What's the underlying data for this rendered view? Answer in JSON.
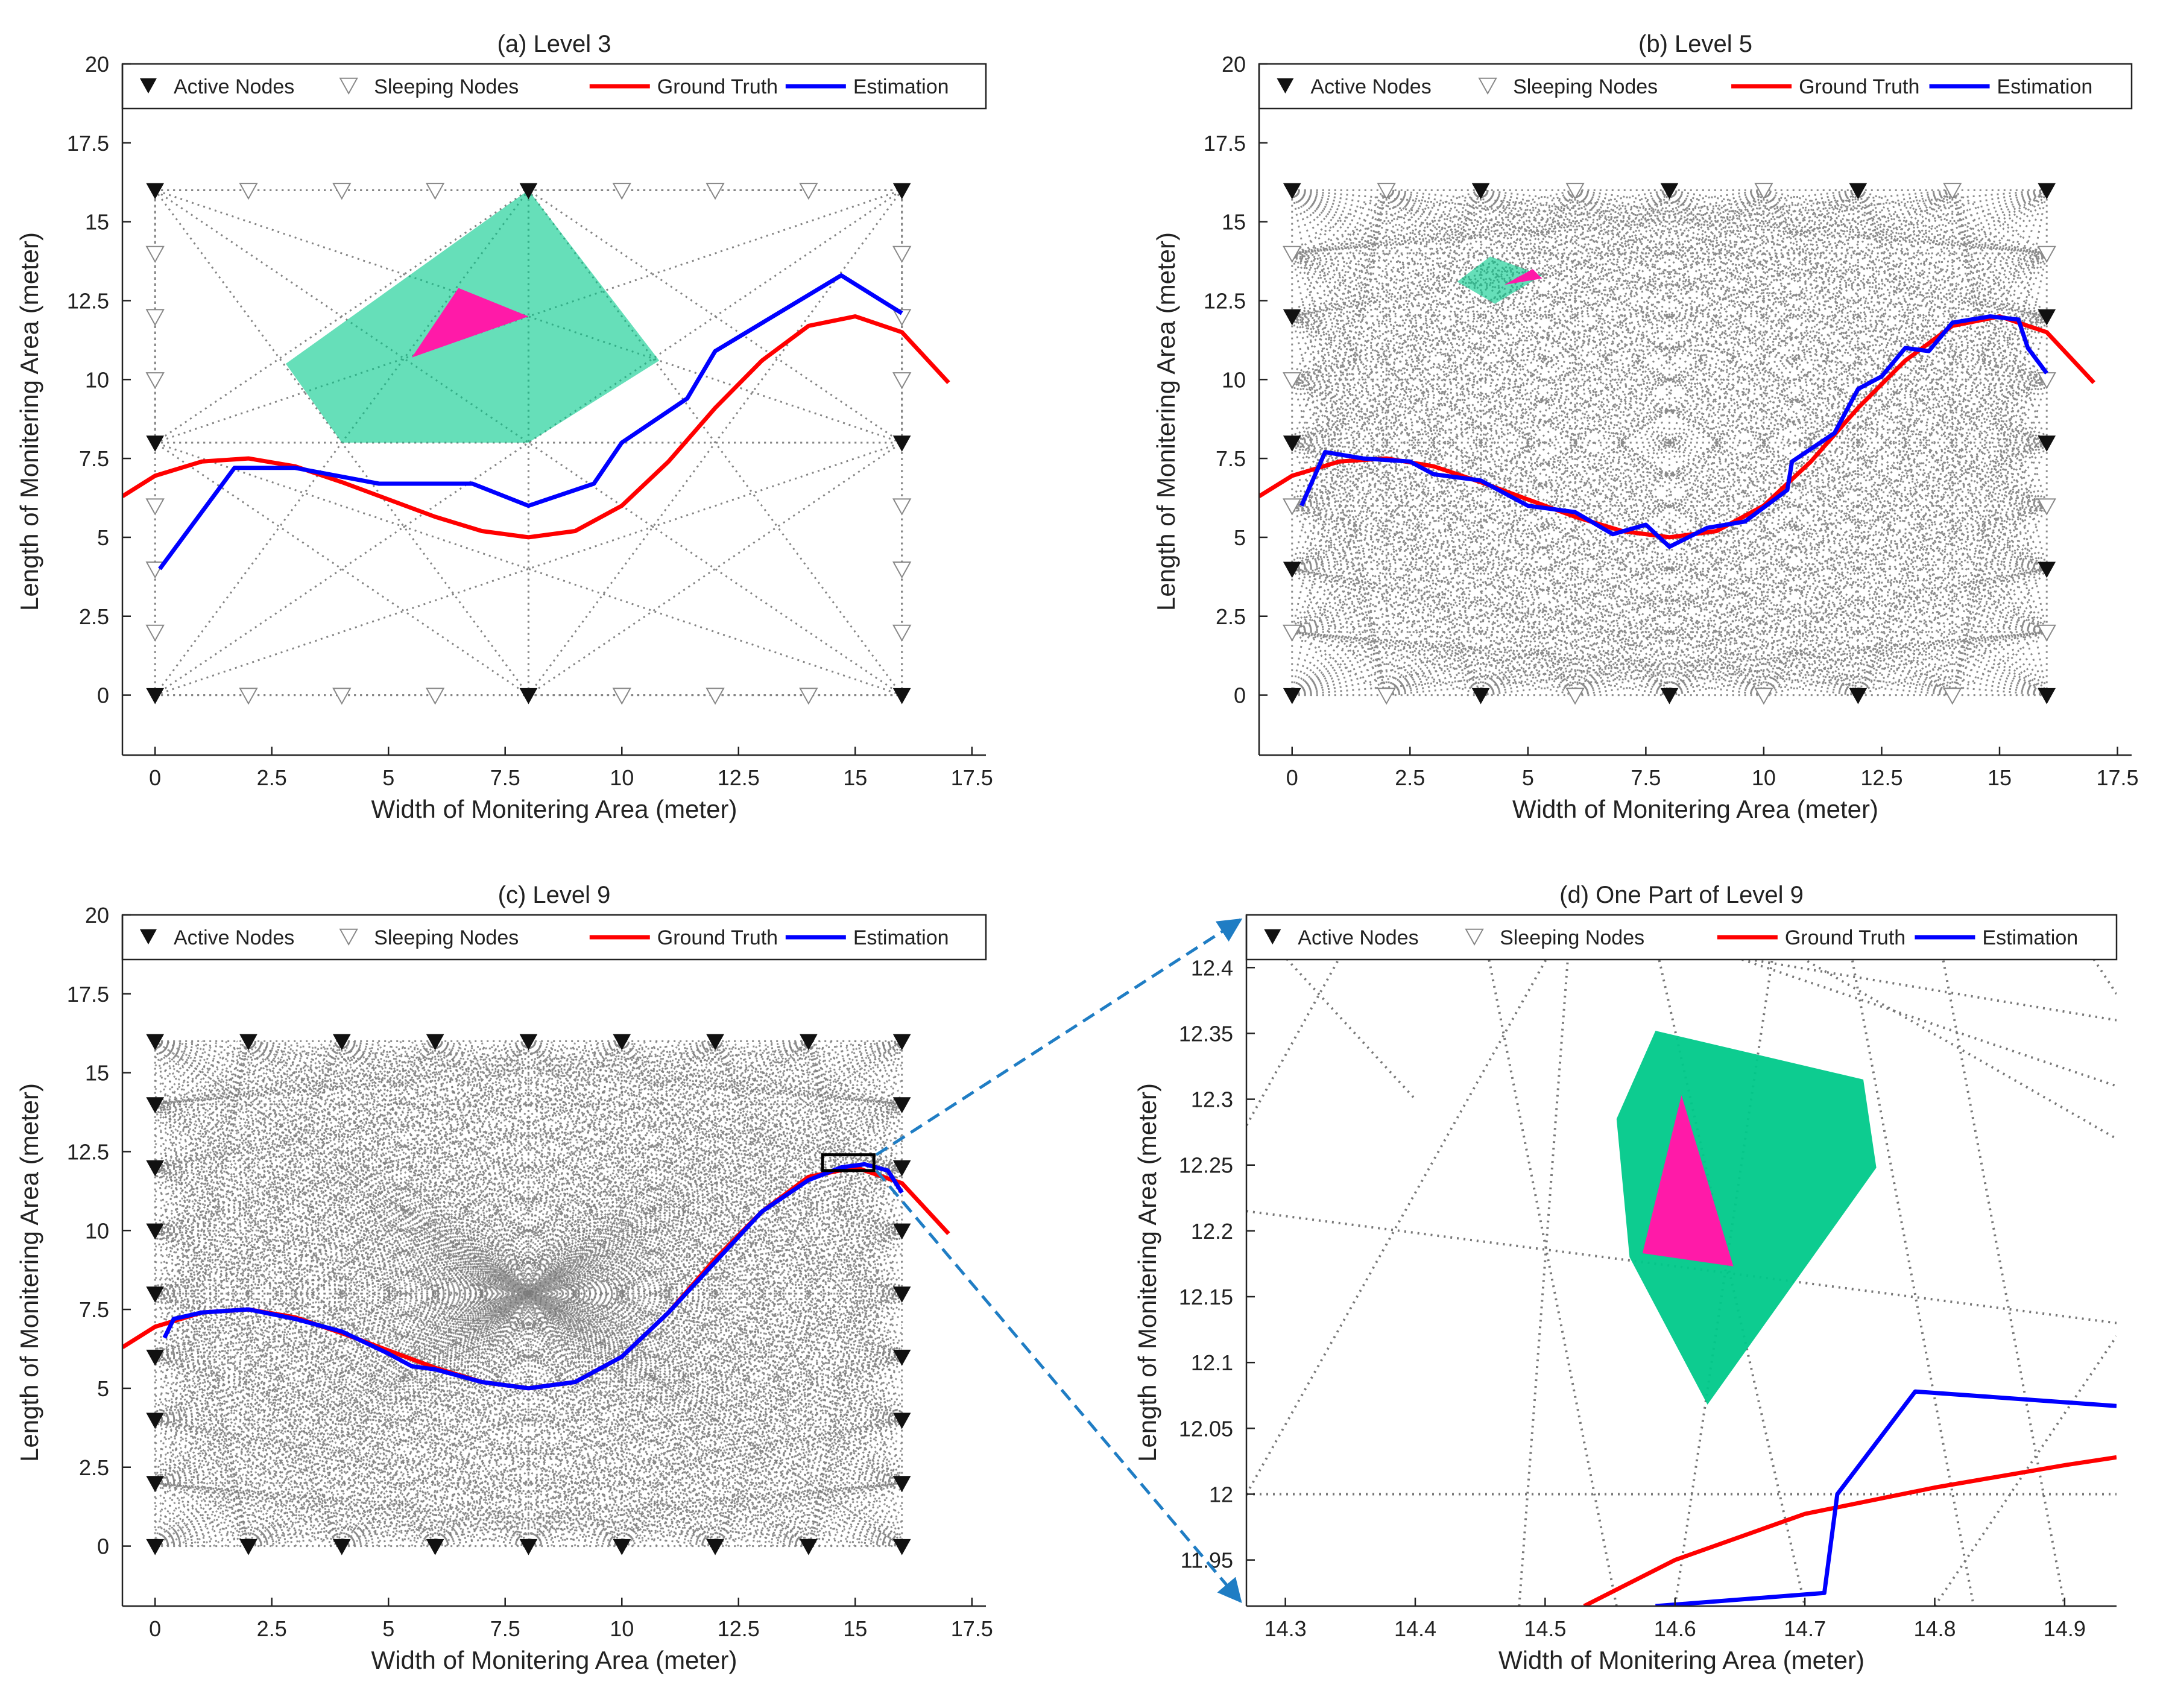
{
  "legend": {
    "active_nodes": "Active Nodes",
    "sleeping_nodes": "Sleeping Nodes",
    "ground_truth": "Ground Truth",
    "estimation": "Estimation"
  },
  "colors": {
    "ground_truth": "#ff0000",
    "estimation": "#0000ff",
    "region": "#00c98a",
    "target": "#ff1aa8",
    "grid_lines": "#777777",
    "zoom_arrow": "#1f7dc4"
  },
  "chart_data": [
    {
      "type": "line",
      "title": "(a) Level 3",
      "xlabel": "Width of Monitering Area (meter)",
      "ylabel": "Length of Monitering Area (meter)",
      "xlim": [
        -0.7,
        17.8
      ],
      "ylim": [
        -1.9,
        20
      ],
      "xticks": [
        "0",
        "2.5",
        "5",
        "7.5",
        "10",
        "12.5",
        "15",
        "17.5"
      ],
      "yticks": [
        "0",
        "2.5",
        "5",
        "7.5",
        "10",
        "12.5",
        "15",
        "17.5",
        "20"
      ],
      "active_nodes": [
        [
          0,
          0
        ],
        [
          8,
          0
        ],
        [
          16,
          0
        ],
        [
          0,
          8
        ],
        [
          16,
          8
        ],
        [
          0,
          16
        ],
        [
          8,
          16
        ],
        [
          16,
          16
        ]
      ],
      "sleeping_nodes": [
        [
          2,
          0
        ],
        [
          4,
          0
        ],
        [
          6,
          0
        ],
        [
          10,
          0
        ],
        [
          12,
          0
        ],
        [
          14,
          0
        ],
        [
          2,
          16
        ],
        [
          4,
          16
        ],
        [
          6,
          16
        ],
        [
          10,
          16
        ],
        [
          12,
          16
        ],
        [
          14,
          16
        ],
        [
          0,
          2
        ],
        [
          0,
          4
        ],
        [
          0,
          6
        ],
        [
          0,
          10
        ],
        [
          0,
          12
        ],
        [
          0,
          14
        ],
        [
          16,
          2
        ],
        [
          16,
          4
        ],
        [
          16,
          6
        ],
        [
          16,
          10
        ],
        [
          16,
          12
        ],
        [
          16,
          14
        ]
      ],
      "ground_truth": [
        [
          -0.7,
          6.3
        ],
        [
          0,
          6.95
        ],
        [
          1,
          7.4
        ],
        [
          2,
          7.5
        ],
        [
          3,
          7.25
        ],
        [
          4,
          6.75
        ],
        [
          5,
          6.2
        ],
        [
          6,
          5.65
        ],
        [
          7,
          5.2
        ],
        [
          8,
          5.0
        ],
        [
          9,
          5.2
        ],
        [
          10,
          6.0
        ],
        [
          11,
          7.4
        ],
        [
          12,
          9.1
        ],
        [
          13,
          10.6
        ],
        [
          14,
          11.7
        ],
        [
          15,
          12.0
        ],
        [
          16,
          11.5
        ],
        [
          17,
          9.9
        ]
      ],
      "estimation": [
        [
          0.1,
          4.0
        ],
        [
          1.7,
          7.2
        ],
        [
          3.0,
          7.2
        ],
        [
          4.8,
          6.7
        ],
        [
          6.8,
          6.7
        ],
        [
          8.0,
          6.0
        ],
        [
          9.4,
          6.7
        ],
        [
          10.0,
          8.0
        ],
        [
          11.4,
          9.4
        ],
        [
          12.0,
          10.9
        ],
        [
          14.7,
          13.3
        ],
        [
          16.0,
          12.1
        ]
      ],
      "region": [
        [
          4.0,
          8.0
        ],
        [
          2.8,
          10.5
        ],
        [
          8.0,
          16.0
        ],
        [
          10.8,
          10.6
        ],
        [
          8.0,
          8.0
        ]
      ],
      "target": [
        [
          5.5,
          10.7
        ],
        [
          6.5,
          12.9
        ],
        [
          8.0,
          12.0
        ]
      ]
    },
    {
      "type": "line",
      "title": "(b) Level 5",
      "xlabel": "Width of Monitering Area (meter)",
      "ylabel": "Length of Monitering Area (meter)",
      "xlim": [
        -0.7,
        17.8
      ],
      "ylim": [
        -1.9,
        20
      ],
      "xticks": [
        "0",
        "2.5",
        "5",
        "7.5",
        "10",
        "12.5",
        "15",
        "17.5"
      ],
      "yticks": [
        "0",
        "2.5",
        "5",
        "7.5",
        "10",
        "12.5",
        "15",
        "17.5",
        "20"
      ],
      "ground_truth": [
        [
          -0.7,
          6.3
        ],
        [
          0,
          6.95
        ],
        [
          1,
          7.4
        ],
        [
          2,
          7.5
        ],
        [
          3,
          7.25
        ],
        [
          4,
          6.75
        ],
        [
          5,
          6.2
        ],
        [
          6,
          5.65
        ],
        [
          7,
          5.2
        ],
        [
          8,
          5.0
        ],
        [
          9,
          5.2
        ],
        [
          10,
          6.0
        ],
        [
          11,
          7.4
        ],
        [
          12,
          9.1
        ],
        [
          13,
          10.6
        ],
        [
          14,
          11.7
        ],
        [
          15,
          12.0
        ],
        [
          16,
          11.5
        ],
        [
          17,
          9.9
        ]
      ],
      "estimation": [
        [
          0.2,
          6.0
        ],
        [
          0.7,
          7.7
        ],
        [
          1.5,
          7.5
        ],
        [
          2.5,
          7.4
        ],
        [
          3.0,
          7.0
        ],
        [
          4.0,
          6.8
        ],
        [
          5.0,
          6.0
        ],
        [
          6.0,
          5.8
        ],
        [
          6.8,
          5.1
        ],
        [
          7.5,
          5.4
        ],
        [
          8.0,
          4.7
        ],
        [
          8.8,
          5.3
        ],
        [
          9.6,
          5.5
        ],
        [
          10.5,
          6.5
        ],
        [
          10.6,
          7.4
        ],
        [
          11.5,
          8.3
        ],
        [
          12.0,
          9.7
        ],
        [
          12.5,
          10.1
        ],
        [
          13.0,
          11.0
        ],
        [
          13.5,
          10.9
        ],
        [
          14.0,
          11.8
        ],
        [
          14.8,
          12.0
        ],
        [
          15.4,
          11.9
        ],
        [
          15.6,
          11.0
        ],
        [
          16.0,
          10.2
        ]
      ],
      "region": [
        [
          3.5,
          13.1
        ],
        [
          4.2,
          13.9
        ],
        [
          5.3,
          13.3
        ],
        [
          4.3,
          12.4
        ]
      ],
      "target": [
        [
          4.5,
          13.0
        ],
        [
          5.1,
          13.5
        ],
        [
          5.3,
          13.2
        ]
      ]
    },
    {
      "type": "line",
      "title": "(c) Level 9",
      "xlabel": "Width of Monitering Area (meter)",
      "ylabel": "Length of Monitering Area (meter)",
      "xlim": [
        -0.7,
        17.8
      ],
      "ylim": [
        -1.9,
        20
      ],
      "xticks": [
        "0",
        "2.5",
        "5",
        "7.5",
        "10",
        "12.5",
        "15",
        "17.5"
      ],
      "yticks": [
        "0",
        "2.5",
        "5",
        "7.5",
        "10",
        "12.5",
        "15",
        "17.5",
        "20"
      ],
      "ground_truth": [
        [
          -0.7,
          6.3
        ],
        [
          0,
          6.95
        ],
        [
          1,
          7.4
        ],
        [
          2,
          7.5
        ],
        [
          3,
          7.25
        ],
        [
          4,
          6.75
        ],
        [
          5,
          6.2
        ],
        [
          6,
          5.65
        ],
        [
          7,
          5.2
        ],
        [
          8,
          5.0
        ],
        [
          9,
          5.2
        ],
        [
          10,
          6.0
        ],
        [
          11,
          7.4
        ],
        [
          12,
          9.1
        ],
        [
          13,
          10.6
        ],
        [
          14,
          11.7
        ],
        [
          15,
          12.0
        ],
        [
          16,
          11.5
        ],
        [
          17,
          9.9
        ]
      ],
      "estimation": [
        [
          0.2,
          6.6
        ],
        [
          0.4,
          7.2
        ],
        [
          1.0,
          7.4
        ],
        [
          2.0,
          7.5
        ],
        [
          3.0,
          7.2
        ],
        [
          4.0,
          6.8
        ],
        [
          5.0,
          6.1
        ],
        [
          5.5,
          5.7
        ],
        [
          6.0,
          5.6
        ],
        [
          7.0,
          5.2
        ],
        [
          8.0,
          5.0
        ],
        [
          9.0,
          5.2
        ],
        [
          10.0,
          6.0
        ],
        [
          11.0,
          7.4
        ],
        [
          12.0,
          9.0
        ],
        [
          13.0,
          10.6
        ],
        [
          14.0,
          11.6
        ],
        [
          14.7,
          12.0
        ],
        [
          15.2,
          12.1
        ],
        [
          15.7,
          11.9
        ],
        [
          16.0,
          11.2
        ]
      ],
      "zoom_box": {
        "x": [
          14.3,
          15.4
        ],
        "y": [
          11.9,
          12.4
        ]
      }
    },
    {
      "type": "line",
      "title": "(d) One Part of Level 9",
      "xlabel": "Width of Monitering Area (meter)",
      "ylabel": "Length of Monitering Area (meter)",
      "xlim": [
        14.27,
        14.94
      ],
      "ylim": [
        11.915,
        12.44
      ],
      "xticks": [
        "14.3",
        "14.4",
        "14.5",
        "14.6",
        "14.7",
        "14.8",
        "14.9"
      ],
      "yticks": [
        "11.95",
        "12",
        "12.05",
        "12.1",
        "12.15",
        "12.2",
        "12.25",
        "12.3",
        "12.35",
        "12.4"
      ],
      "ground_truth": [
        [
          14.53,
          11.915
        ],
        [
          14.6,
          11.95
        ],
        [
          14.7,
          11.985
        ],
        [
          14.8,
          12.005
        ],
        [
          14.9,
          12.022
        ],
        [
          14.94,
          12.028
        ]
      ],
      "estimation": [
        [
          14.585,
          11.915
        ],
        [
          14.715,
          11.925
        ],
        [
          14.725,
          12.0
        ],
        [
          14.785,
          12.078
        ],
        [
          14.94,
          12.067
        ]
      ],
      "region": [
        [
          14.555,
          12.285
        ],
        [
          14.585,
          12.352
        ],
        [
          14.745,
          12.315
        ],
        [
          14.755,
          12.248
        ],
        [
          14.625,
          12.068
        ],
        [
          14.565,
          12.18
        ]
      ],
      "target": [
        [
          14.605,
          12.303
        ],
        [
          14.575,
          12.183
        ],
        [
          14.645,
          12.173
        ]
      ]
    }
  ]
}
